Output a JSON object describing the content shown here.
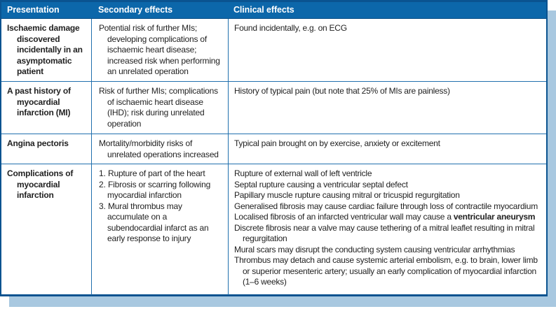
{
  "colors": {
    "header_bg": "#0c67aa",
    "border": "#0a5390",
    "grid": "#2170ae",
    "shadow": "#a8c8e0",
    "text": "#222222"
  },
  "header": {
    "cols": [
      "Presentation",
      "Secondary effects",
      "Clinical effects"
    ]
  },
  "rows": [
    {
      "presentation": "Ischaemic damage discovered incidentally in an asymptomatic patient",
      "secondary": "Potential risk of further MIs; developing complications of ischaemic heart disease; increased risk when performing an unrelated operation",
      "clinical": "Found incidentally, e.g. on ECG"
    },
    {
      "presentation": "A past history of myocardial infarction (MI)",
      "secondary": "Risk of further MIs; complications of ischaemic heart disease (IHD); risk during unrelated operation",
      "clinical": "History of typical pain (but note that 25% of MIs are painless)"
    },
    {
      "presentation": "Angina pectoris",
      "secondary": "Mortality/morbidity risks of unrelated operations increased",
      "clinical": "Typical pain brought on by exercise, anxiety or excitement"
    },
    {
      "presentation": "Complications of myocardial infarction",
      "secondary_items": [
        {
          "num": "1.",
          "text": "Rupture of part of the heart"
        },
        {
          "num": "2.",
          "text": "Fibrosis or scarring following myocardial infarction"
        },
        {
          "num": "3.",
          "text": "Mural thrombus may accumulate on a subendocardial infarct as an early response to injury"
        }
      ],
      "clinical_lines": [
        {
          "text": "Rupture of external wall of left ventricle"
        },
        {
          "text": "Septal rupture causing a ventricular septal defect"
        },
        {
          "text": "Papillary muscle rupture causing mitral or tricuspid regurgitation"
        },
        {
          "text": "Generalised fibrosis may cause cardiac failure through loss of contractile myocardium"
        },
        {
          "text": "Localised fibrosis of an infarcted ventricular wall may cause a ",
          "bold": "ventricular aneurysm"
        },
        {
          "text": "Discrete fibrosis near a valve may cause tethering of a mitral leaflet resulting in mitral regurgitation"
        },
        {
          "text": "Mural scars may disrupt the conducting system causing ventricular arrhythmias"
        },
        {
          "text": "Thrombus may detach and cause systemic arterial embolism, e.g. to brain, lower limb or superior mesenteric artery; usually an early complication of myocardial infarction (1–6 weeks)"
        }
      ]
    }
  ]
}
